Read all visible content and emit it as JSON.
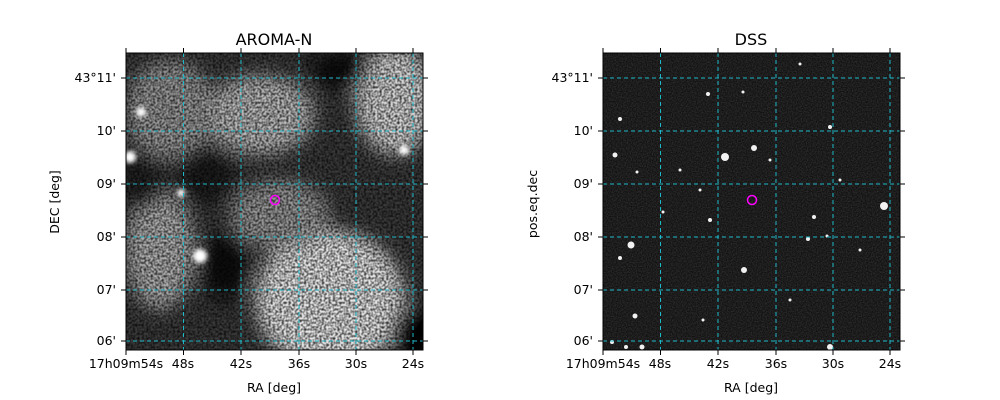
{
  "chart_data": [
    {
      "type": "heatmap",
      "title": "AROMA-N",
      "xlabel": "RA [deg]",
      "ylabel": "DEC [deg]",
      "xticks": [
        "17h09m54s",
        "48s",
        "42s",
        "36s",
        "30s",
        "24s"
      ],
      "yticks": [
        "43°11'",
        "10'",
        "09'",
        "08'",
        "07'",
        "06'"
      ],
      "colormap": "gray",
      "grid": true,
      "grid_color": "#1fb8c8",
      "marker": {
        "shape": "circle",
        "color": "#ff00ff"
      }
    },
    {
      "type": "heatmap",
      "title": "DSS",
      "xlabel": "RA [deg]",
      "ylabel": "pos.eq.dec",
      "xticks": [
        "17h09m54s",
        "48s",
        "42s",
        "36s",
        "30s",
        "24s"
      ],
      "yticks": [
        "43°11'",
        "10'",
        "09'",
        "08'",
        "07'",
        "06'"
      ],
      "colormap": "gray",
      "grid": true,
      "grid_color": "#1fb8c8",
      "marker": {
        "shape": "circle",
        "color": "#ff00ff"
      }
    }
  ]
}
